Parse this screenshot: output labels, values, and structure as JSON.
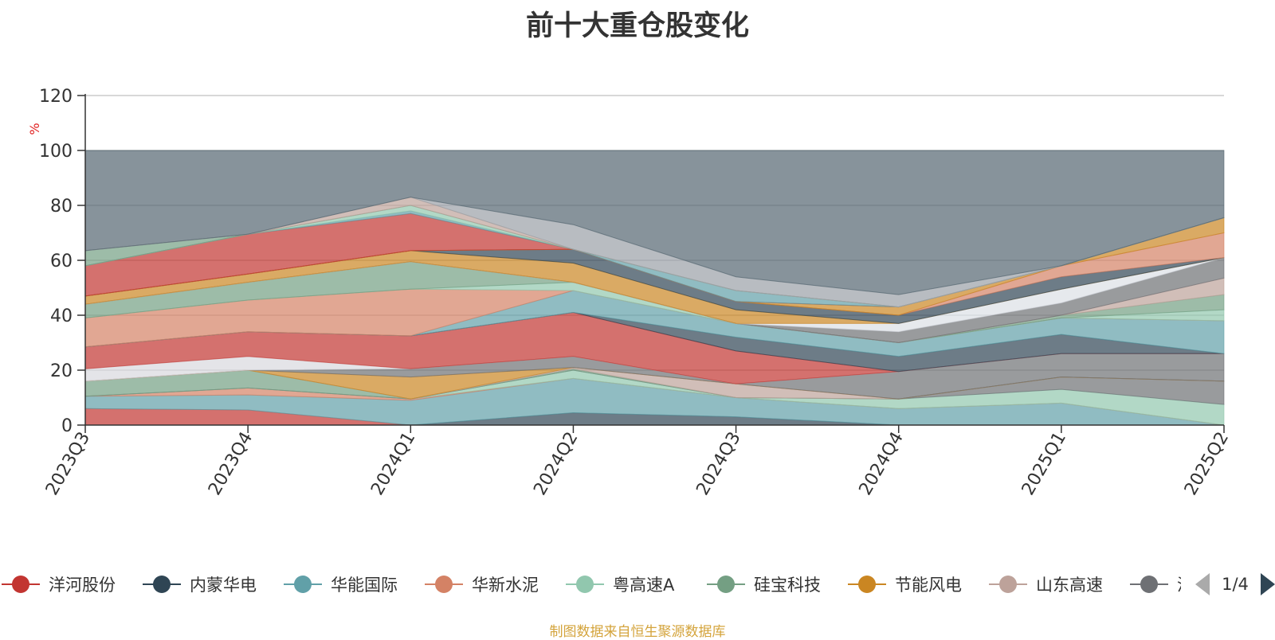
{
  "chart_title": "前十大重仓股变化",
  "source_note": "制图数据来自恒生聚源数据库",
  "legend_pager": "1/4",
  "chart_data": {
    "type": "area",
    "title": "前十大重仓股变化",
    "ylabel": "%",
    "ylim": [
      0,
      120
    ],
    "yticks": [
      0,
      20,
      40,
      60,
      80,
      100,
      120
    ],
    "categories": [
      "2023Q3",
      "2023Q4",
      "2024Q1",
      "2024Q2",
      "2024Q3",
      "2024Q4",
      "2025Q1",
      "2025Q2"
    ],
    "grid": true,
    "legend_position": "bottom",
    "legend_visible": [
      {
        "name": "洋河股份",
        "color": "#c23531"
      },
      {
        "name": "内蒙华电",
        "color": "#2f4554"
      },
      {
        "name": "华能国际",
        "color": "#61a0a8"
      },
      {
        "name": "华新水泥",
        "color": "#d48265"
      },
      {
        "name": "粤高速A",
        "color": "#91c7ae"
      },
      {
        "name": "硅宝科技",
        "color": "#749f83"
      },
      {
        "name": "节能风电",
        "color": "#ca8622"
      },
      {
        "name": "山东高速",
        "color": "#bda29a"
      },
      {
        "name": "沪",
        "color": "#6e7074"
      }
    ],
    "bands": [
      {
        "color": "#c23531",
        "top": [
          6,
          5.5,
          0,
          0,
          0,
          0,
          0,
          0
        ],
        "bottom": [
          0,
          0,
          0,
          0,
          0,
          0,
          0,
          0
        ]
      },
      {
        "color": "#2f4554",
        "top": [
          0,
          0,
          0,
          4.5,
          3,
          0,
          0,
          0
        ],
        "bottom": [
          0,
          0,
          0,
          0,
          0,
          0,
          0,
          0
        ]
      },
      {
        "color": "#61a0a8",
        "top": [
          10.5,
          11,
          9,
          17,
          10,
          6,
          8,
          0
        ],
        "bottom": [
          6,
          5.5,
          0,
          4.5,
          3,
          0,
          0,
          0
        ]
      },
      {
        "color": "#d48265",
        "top": [
          10.5,
          13.5,
          9.5,
          17,
          10,
          6,
          8,
          0
        ],
        "bottom": [
          10.5,
          11,
          9,
          17,
          10,
          6,
          8,
          0
        ]
      },
      {
        "color": "#91c7ae",
        "top": [
          10.5,
          13.5,
          9.5,
          20,
          10,
          9.5,
          13,
          7.5
        ],
        "bottom": [
          10.5,
          13.5,
          9.5,
          17,
          10,
          6,
          8,
          0
        ]
      },
      {
        "color": "#6e7074",
        "top": [
          10.5,
          13.5,
          9.5,
          20,
          10,
          9.5,
          17.5,
          16
        ],
        "bottom": [
          10.5,
          13.5,
          9.5,
          20,
          10,
          9.5,
          13,
          7.5
        ]
      },
      {
        "color": "#749f83",
        "top": [
          16,
          20,
          9.5,
          20.5,
          10,
          9.5,
          17.5,
          16
        ],
        "bottom": [
          10.5,
          13.5,
          9.5,
          20,
          10,
          9.5,
          17.5,
          16
        ]
      },
      {
        "color": "#bda29a",
        "top": [
          16,
          20,
          9.5,
          21,
          15,
          9.5,
          17.5,
          16
        ],
        "bottom": [
          16,
          20,
          9.5,
          20.5,
          10,
          9.5,
          17.5,
          16
        ]
      },
      {
        "color": "#ca8622",
        "top": [
          16,
          20,
          17.5,
          21,
          15,
          9.5,
          17.5,
          16
        ],
        "bottom": [
          16,
          20,
          9.5,
          21,
          15,
          9.5,
          17.5,
          16
        ]
      },
      {
        "color": "#6e7074",
        "top": [
          16,
          20,
          20.5,
          25,
          15,
          19.5,
          26,
          26
        ],
        "bottom": [
          16,
          20,
          17.5,
          21,
          15,
          9.5,
          17.5,
          16
        ]
      },
      {
        "color": "#d8d8de",
        "top": [
          20.5,
          25,
          20.5,
          25,
          15,
          19.5,
          26,
          26
        ],
        "bottom": [
          16,
          20,
          20.5,
          25,
          15,
          19.5,
          26,
          26
        ]
      },
      {
        "color": "#c23531",
        "top": [
          28.5,
          34,
          32.5,
          41,
          27,
          19.5,
          26,
          26
        ],
        "bottom": [
          20.5,
          25,
          20.5,
          25,
          15,
          19.5,
          26,
          26
        ]
      },
      {
        "color": "#2f4554",
        "top": [
          28.5,
          34,
          32.5,
          41,
          32,
          25,
          33,
          26
        ],
        "bottom": [
          28.5,
          34,
          32.5,
          41,
          27,
          19.5,
          26,
          26
        ]
      },
      {
        "color": "#61a0a8",
        "top": [
          28.5,
          34,
          32.5,
          49,
          37,
          30,
          39,
          38
        ],
        "bottom": [
          28.5,
          34,
          32.5,
          41,
          32,
          25,
          33,
          26
        ]
      },
      {
        "color": "#d48265",
        "top": [
          39,
          45.5,
          49.5,
          49,
          37,
          30,
          39,
          38
        ],
        "bottom": [
          28.5,
          34,
          32.5,
          49,
          37,
          30,
          39,
          38
        ]
      },
      {
        "color": "#91c7ae",
        "top": [
          39,
          45.5,
          49.5,
          52,
          37,
          30,
          39,
          42
        ],
        "bottom": [
          39,
          45.5,
          49.5,
          49,
          37,
          30,
          39,
          38
        ]
      },
      {
        "color": "#749f83",
        "top": [
          44,
          52,
          59.5,
          52,
          37,
          30,
          40,
          47.5
        ],
        "bottom": [
          39,
          45.5,
          49.5,
          52,
          37,
          30,
          39,
          42
        ]
      },
      {
        "color": "#bda29a",
        "top": [
          44,
          52,
          59.5,
          52,
          37,
          30,
          40,
          53.5
        ],
        "bottom": [
          44,
          52,
          59.5,
          52,
          37,
          30,
          40,
          47.5
        ]
      },
      {
        "color": "#6e7074",
        "top": [
          44,
          52,
          59.5,
          52,
          37,
          34,
          44.5,
          61
        ],
        "bottom": [
          44,
          52,
          59.5,
          52,
          37,
          30,
          40,
          53.5
        ]
      },
      {
        "color": "#dcdfe6",
        "top": [
          44,
          52,
          59.5,
          52,
          37,
          37,
          49.5,
          61
        ],
        "bottom": [
          44,
          52,
          59.5,
          52,
          37,
          34,
          44.5,
          61
        ]
      },
      {
        "color": "#ca8622",
        "top": [
          47,
          55,
          63.5,
          59,
          42,
          37,
          49.5,
          61
        ],
        "bottom": [
          44,
          52,
          59.5,
          52,
          37,
          37,
          49.5,
          61
        ]
      },
      {
        "color": "#2f4554",
        "top": [
          47,
          55,
          63.5,
          64,
          45,
          40,
          54,
          61
        ],
        "bottom": [
          47,
          55,
          63.5,
          59,
          42,
          37,
          49.5,
          61
        ]
      },
      {
        "color": "#d48265",
        "top": [
          47,
          55,
          63.5,
          64,
          45,
          40,
          58,
          70
        ],
        "bottom": [
          47,
          55,
          63.5,
          64,
          45,
          40,
          54,
          61
        ]
      },
      {
        "color": "#ca8622",
        "top": [
          47,
          55,
          63.5,
          64,
          45,
          43,
          58,
          75.5
        ],
        "bottom": [
          47,
          55,
          63.5,
          64,
          45,
          40,
          58,
          70
        ]
      },
      {
        "color": "#c23531",
        "top": [
          58,
          69.5,
          77,
          64,
          45,
          43,
          58,
          75.5
        ],
        "bottom": [
          47,
          55,
          63.5,
          64,
          45,
          43,
          58,
          75.5
        ]
      },
      {
        "color": "#61a0a8",
        "top": [
          58,
          69.5,
          78,
          64,
          49,
          43,
          58,
          75.5
        ],
        "bottom": [
          58,
          69.5,
          77,
          64,
          45,
          43,
          58,
          75.5
        ]
      },
      {
        "color": "#91c7ae",
        "top": [
          58,
          69.5,
          80,
          64,
          49,
          43,
          58,
          75.5
        ],
        "bottom": [
          58,
          69.5,
          78,
          64,
          49,
          43,
          58,
          75.5
        ]
      },
      {
        "color": "#749f83",
        "top": [
          63.5,
          69.5,
          80,
          64,
          49,
          43,
          58,
          75.5
        ],
        "bottom": [
          58,
          69.5,
          80,
          64,
          49,
          43,
          58,
          75.5
        ]
      },
      {
        "color": "#bda29a",
        "top": [
          63.5,
          69.5,
          83,
          64,
          49,
          43,
          58,
          75.5
        ],
        "bottom": [
          63.5,
          69.5,
          80,
          64,
          49,
          43,
          58,
          75.5
        ]
      },
      {
        "color": "#9aa0a6",
        "top": [
          63.5,
          69.5,
          83,
          73,
          54,
          47.5,
          58,
          75.5
        ],
        "bottom": [
          63.5,
          69.5,
          83,
          64,
          49,
          43,
          58,
          75.5
        ]
      },
      {
        "color": "#546570",
        "top": [
          100,
          100,
          100,
          100,
          100,
          100,
          100,
          100
        ],
        "bottom": [
          63.5,
          69.5,
          83,
          73,
          54,
          47.5,
          58,
          75.5
        ]
      }
    ]
  }
}
